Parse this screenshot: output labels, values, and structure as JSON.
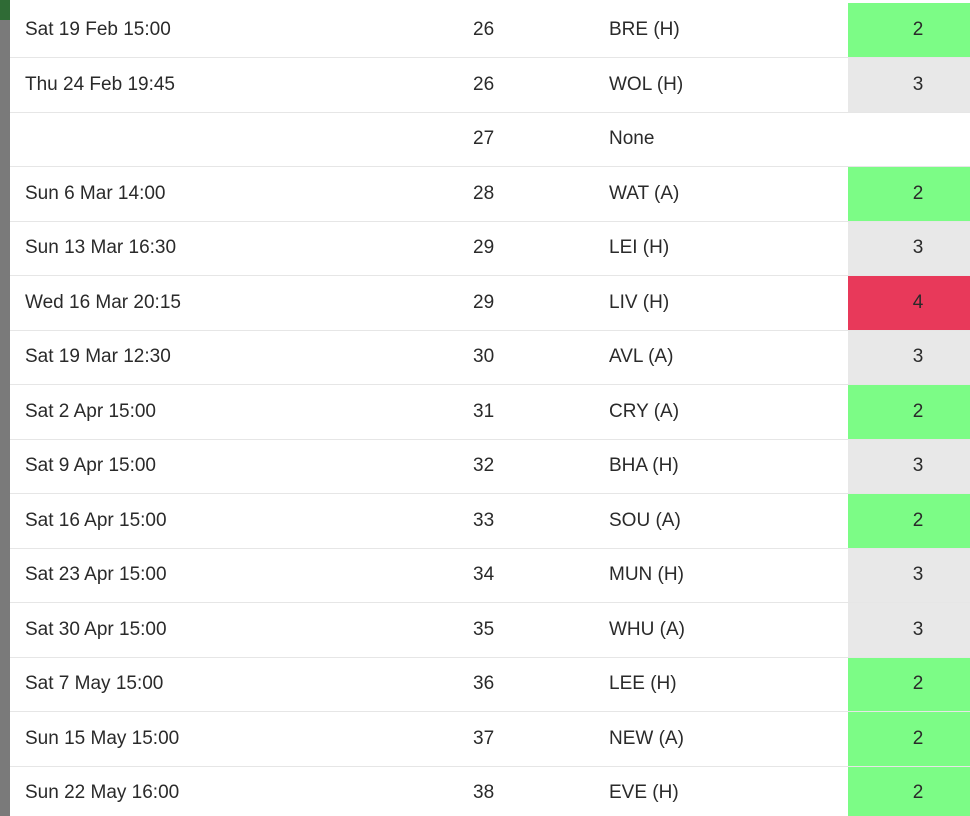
{
  "difficulty_colors": {
    "2": "#7cfc86",
    "3": "#e8e8e8",
    "4": "#e8395a"
  },
  "fixtures": [
    {
      "date": "Sat 19 Feb 15:00",
      "gameweek": "26",
      "opponent": "BRE (H)",
      "difficulty": "2"
    },
    {
      "date": "Thu 24 Feb 19:45",
      "gameweek": "26",
      "opponent": "WOL (H)",
      "difficulty": "3"
    },
    {
      "date": "",
      "gameweek": "27",
      "opponent": "None",
      "difficulty": ""
    },
    {
      "date": "Sun 6 Mar 14:00",
      "gameweek": "28",
      "opponent": "WAT (A)",
      "difficulty": "2"
    },
    {
      "date": "Sun 13 Mar 16:30",
      "gameweek": "29",
      "opponent": "LEI (H)",
      "difficulty": "3"
    },
    {
      "date": "Wed 16 Mar 20:15",
      "gameweek": "29",
      "opponent": "LIV (H)",
      "difficulty": "4"
    },
    {
      "date": "Sat 19 Mar 12:30",
      "gameweek": "30",
      "opponent": "AVL (A)",
      "difficulty": "3"
    },
    {
      "date": "Sat 2 Apr 15:00",
      "gameweek": "31",
      "opponent": "CRY (A)",
      "difficulty": "2"
    },
    {
      "date": "Sat 9 Apr 15:00",
      "gameweek": "32",
      "opponent": "BHA (H)",
      "difficulty": "3"
    },
    {
      "date": "Sat 16 Apr 15:00",
      "gameweek": "33",
      "opponent": "SOU (A)",
      "difficulty": "2"
    },
    {
      "date": "Sat 23 Apr 15:00",
      "gameweek": "34",
      "opponent": "MUN (H)",
      "difficulty": "3"
    },
    {
      "date": "Sat 30 Apr 15:00",
      "gameweek": "35",
      "opponent": "WHU (A)",
      "difficulty": "3"
    },
    {
      "date": "Sat 7 May 15:00",
      "gameweek": "36",
      "opponent": "LEE (H)",
      "difficulty": "2"
    },
    {
      "date": "Sun 15 May 15:00",
      "gameweek": "37",
      "opponent": "NEW (A)",
      "difficulty": "2"
    },
    {
      "date": "Sun 22 May 16:00",
      "gameweek": "38",
      "opponent": "EVE (H)",
      "difficulty": "2"
    }
  ]
}
